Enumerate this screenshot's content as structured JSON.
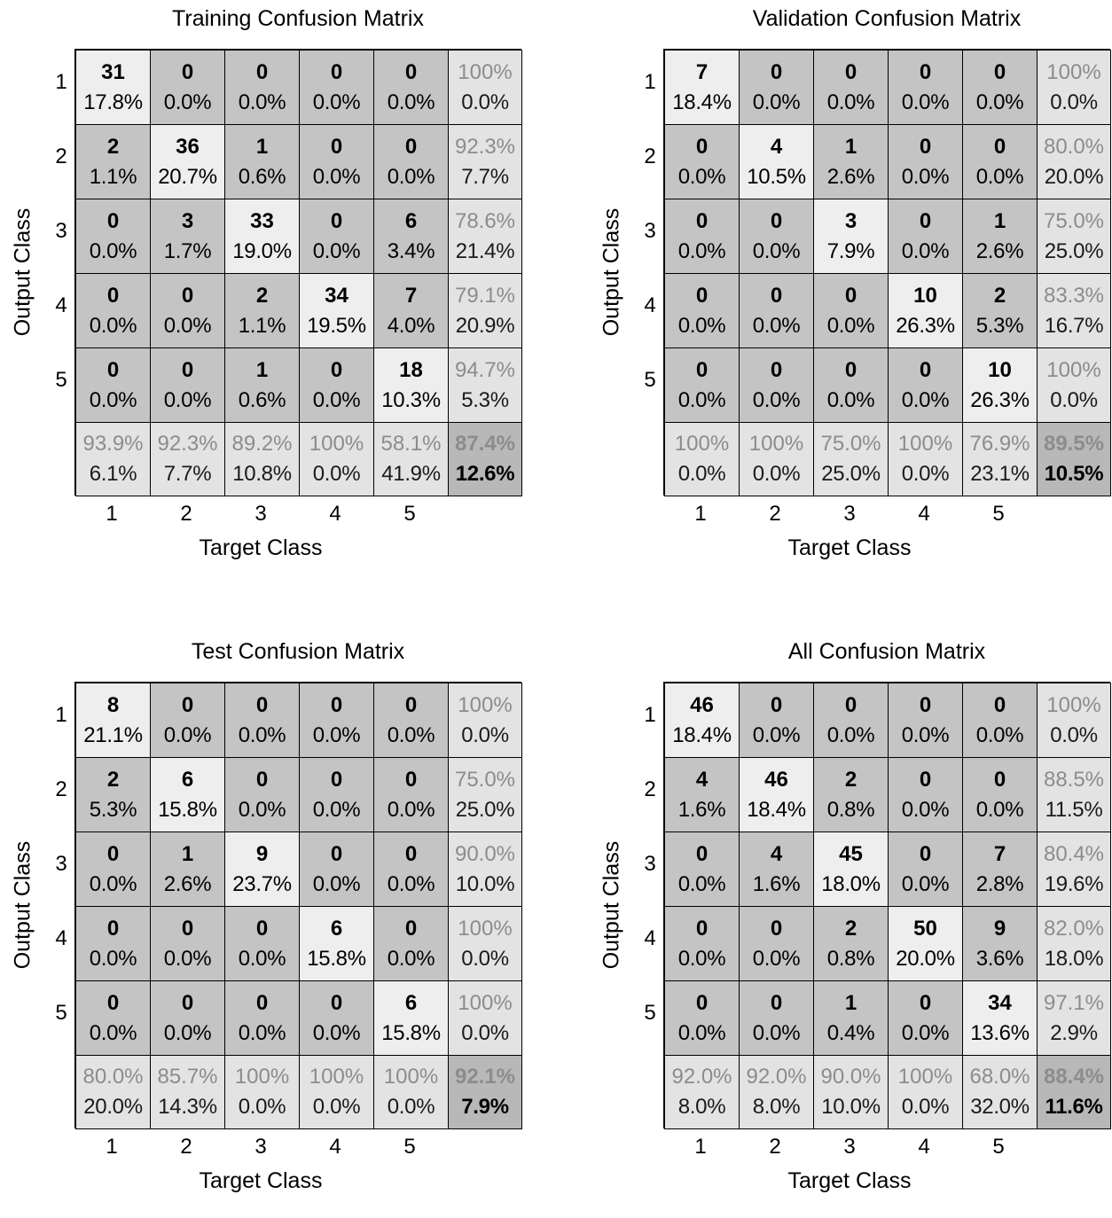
{
  "chart_data": [
    {
      "type": "heatmap",
      "title": "Training Confusion Matrix",
      "xlabel": "Target Class",
      "ylabel": "Output Class",
      "classes": [
        "1",
        "2",
        "3",
        "4",
        "5"
      ],
      "counts": [
        [
          31,
          0,
          0,
          0,
          0
        ],
        [
          2,
          36,
          1,
          0,
          0
        ],
        [
          0,
          3,
          33,
          0,
          6
        ],
        [
          0,
          0,
          2,
          34,
          7
        ],
        [
          0,
          0,
          1,
          0,
          18
        ]
      ],
      "cell_percents": [
        [
          "17.8%",
          "0.0%",
          "0.0%",
          "0.0%",
          "0.0%"
        ],
        [
          "1.1%",
          "20.7%",
          "0.6%",
          "0.0%",
          "0.0%"
        ],
        [
          "0.0%",
          "1.7%",
          "19.0%",
          "0.0%",
          "3.4%"
        ],
        [
          "0.0%",
          "0.0%",
          "1.1%",
          "19.5%",
          "4.0%"
        ],
        [
          "0.0%",
          "0.0%",
          "0.6%",
          "0.0%",
          "10.3%"
        ]
      ],
      "row_stats": [
        [
          "100%",
          "0.0%"
        ],
        [
          "92.3%",
          "7.7%"
        ],
        [
          "78.6%",
          "21.4%"
        ],
        [
          "79.1%",
          "20.9%"
        ],
        [
          "94.7%",
          "5.3%"
        ]
      ],
      "col_stats": [
        [
          "93.9%",
          "6.1%"
        ],
        [
          "92.3%",
          "7.7%"
        ],
        [
          "89.2%",
          "10.8%"
        ],
        [
          "100%",
          "0.0%"
        ],
        [
          "58.1%",
          "41.9%"
        ]
      ],
      "total": [
        "87.4%",
        "12.6%"
      ]
    },
    {
      "type": "heatmap",
      "title": "Validation Confusion Matrix",
      "xlabel": "Target Class",
      "ylabel": "Output Class",
      "classes": [
        "1",
        "2",
        "3",
        "4",
        "5"
      ],
      "counts": [
        [
          7,
          0,
          0,
          0,
          0
        ],
        [
          0,
          4,
          1,
          0,
          0
        ],
        [
          0,
          0,
          3,
          0,
          1
        ],
        [
          0,
          0,
          0,
          10,
          2
        ],
        [
          0,
          0,
          0,
          0,
          10
        ]
      ],
      "cell_percents": [
        [
          "18.4%",
          "0.0%",
          "0.0%",
          "0.0%",
          "0.0%"
        ],
        [
          "0.0%",
          "10.5%",
          "2.6%",
          "0.0%",
          "0.0%"
        ],
        [
          "0.0%",
          "0.0%",
          "7.9%",
          "0.0%",
          "2.6%"
        ],
        [
          "0.0%",
          "0.0%",
          "0.0%",
          "26.3%",
          "5.3%"
        ],
        [
          "0.0%",
          "0.0%",
          "0.0%",
          "0.0%",
          "26.3%"
        ]
      ],
      "row_stats": [
        [
          "100%",
          "0.0%"
        ],
        [
          "80.0%",
          "20.0%"
        ],
        [
          "75.0%",
          "25.0%"
        ],
        [
          "83.3%",
          "16.7%"
        ],
        [
          "100%",
          "0.0%"
        ]
      ],
      "col_stats": [
        [
          "100%",
          "0.0%"
        ],
        [
          "100%",
          "0.0%"
        ],
        [
          "75.0%",
          "25.0%"
        ],
        [
          "100%",
          "0.0%"
        ],
        [
          "76.9%",
          "23.1%"
        ]
      ],
      "total": [
        "89.5%",
        "10.5%"
      ]
    },
    {
      "type": "heatmap",
      "title": "Test Confusion Matrix",
      "xlabel": "Target Class",
      "ylabel": "Output Class",
      "classes": [
        "1",
        "2",
        "3",
        "4",
        "5"
      ],
      "counts": [
        [
          8,
          0,
          0,
          0,
          0
        ],
        [
          2,
          6,
          0,
          0,
          0
        ],
        [
          0,
          1,
          9,
          0,
          0
        ],
        [
          0,
          0,
          0,
          6,
          0
        ],
        [
          0,
          0,
          0,
          0,
          6
        ]
      ],
      "cell_percents": [
        [
          "21.1%",
          "0.0%",
          "0.0%",
          "0.0%",
          "0.0%"
        ],
        [
          "5.3%",
          "15.8%",
          "0.0%",
          "0.0%",
          "0.0%"
        ],
        [
          "0.0%",
          "2.6%",
          "23.7%",
          "0.0%",
          "0.0%"
        ],
        [
          "0.0%",
          "0.0%",
          "0.0%",
          "15.8%",
          "0.0%"
        ],
        [
          "0.0%",
          "0.0%",
          "0.0%",
          "0.0%",
          "15.8%"
        ]
      ],
      "row_stats": [
        [
          "100%",
          "0.0%"
        ],
        [
          "75.0%",
          "25.0%"
        ],
        [
          "90.0%",
          "10.0%"
        ],
        [
          "100%",
          "0.0%"
        ],
        [
          "100%",
          "0.0%"
        ]
      ],
      "col_stats": [
        [
          "80.0%",
          "20.0%"
        ],
        [
          "85.7%",
          "14.3%"
        ],
        [
          "100%",
          "0.0%"
        ],
        [
          "100%",
          "0.0%"
        ],
        [
          "100%",
          "0.0%"
        ]
      ],
      "total": [
        "92.1%",
        "7.9%"
      ]
    },
    {
      "type": "heatmap",
      "title": "All Confusion Matrix",
      "xlabel": "Target Class",
      "ylabel": "Output Class",
      "classes": [
        "1",
        "2",
        "3",
        "4",
        "5"
      ],
      "counts": [
        [
          46,
          0,
          0,
          0,
          0
        ],
        [
          4,
          46,
          2,
          0,
          0
        ],
        [
          0,
          4,
          45,
          0,
          7
        ],
        [
          0,
          0,
          2,
          50,
          9
        ],
        [
          0,
          0,
          1,
          0,
          34
        ]
      ],
      "cell_percents": [
        [
          "18.4%",
          "0.0%",
          "0.0%",
          "0.0%",
          "0.0%"
        ],
        [
          "1.6%",
          "18.4%",
          "0.8%",
          "0.0%",
          "0.0%"
        ],
        [
          "0.0%",
          "1.6%",
          "18.0%",
          "0.0%",
          "2.8%"
        ],
        [
          "0.0%",
          "0.0%",
          "0.8%",
          "20.0%",
          "3.6%"
        ],
        [
          "0.0%",
          "0.0%",
          "0.4%",
          "0.0%",
          "13.6%"
        ]
      ],
      "row_stats": [
        [
          "100%",
          "0.0%"
        ],
        [
          "88.5%",
          "11.5%"
        ],
        [
          "80.4%",
          "19.6%"
        ],
        [
          "82.0%",
          "18.0%"
        ],
        [
          "97.1%",
          "2.9%"
        ]
      ],
      "col_stats": [
        [
          "92.0%",
          "8.0%"
        ],
        [
          "92.0%",
          "8.0%"
        ],
        [
          "90.0%",
          "10.0%"
        ],
        [
          "100%",
          "0.0%"
        ],
        [
          "68.0%",
          "32.0%"
        ]
      ],
      "total": [
        "88.4%",
        "11.6%"
      ]
    }
  ],
  "colors": {
    "diagonal": "#eeeeee",
    "off_diagonal": "#c4c4c4",
    "summary": "#e3e3e3",
    "total": "#b8b8b8",
    "stat_correct_text": "#8c8c8c",
    "border": "#000000"
  }
}
